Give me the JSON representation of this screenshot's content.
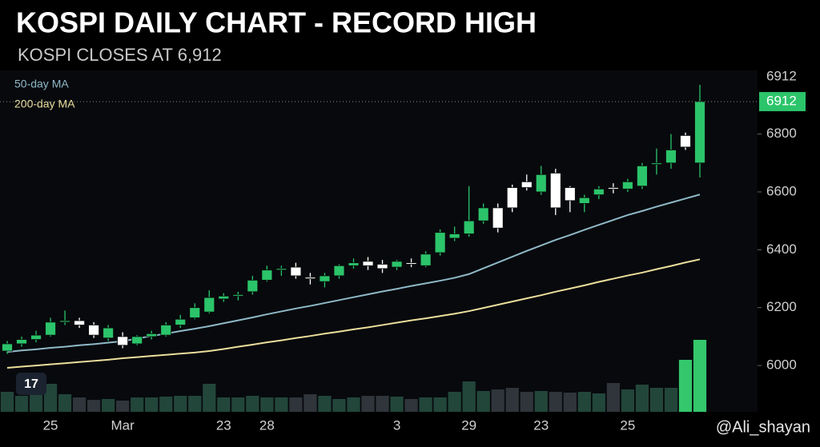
{
  "chart_data": {
    "type": "candlestick",
    "title": "KOSPI DAILY CHART - RECORD HIGH",
    "subtitle": "KOSPI CLOSES AT 6,912",
    "categories": [
      null,
      null,
      null,
      "25",
      null,
      null,
      null,
      null,
      "Mar",
      null,
      null,
      null,
      null,
      null,
      null,
      "23",
      null,
      null,
      "28",
      null,
      null,
      null,
      null,
      null,
      null,
      null,
      null,
      "3",
      null,
      null,
      null,
      null,
      "29",
      null,
      null,
      null,
      null,
      "23",
      null,
      null,
      null,
      null,
      null,
      "25",
      null,
      null,
      null,
      null,
      null
    ],
    "candles": {
      "open": [
        6050,
        6075,
        6090,
        6105,
        6150,
        6155,
        6140,
        6095,
        6100,
        6075,
        6100,
        6105,
        6140,
        6165,
        6185,
        6230,
        6240,
        6255,
        6295,
        6330,
        6340,
        6305,
        6290,
        6310,
        6345,
        6360,
        6350,
        6340,
        6355,
        6345,
        6390,
        6440,
        6455,
        6500,
        6545,
        6615,
        6635,
        6600,
        6665,
        6615,
        6560,
        6590,
        6615,
        6610,
        6620,
        6695,
        6700,
        6795,
        6700
      ],
      "high": [
        6085,
        6100,
        6120,
        6165,
        6190,
        6165,
        6150,
        6140,
        6115,
        6105,
        6120,
        6150,
        6175,
        6215,
        6260,
        6250,
        6255,
        6310,
        6345,
        6345,
        6355,
        6320,
        6320,
        6350,
        6370,
        6375,
        6365,
        6365,
        6370,
        6395,
        6470,
        6480,
        6620,
        6560,
        6560,
        6625,
        6660,
        6690,
        6680,
        6620,
        6590,
        6620,
        6630,
        6645,
        6700,
        6750,
        6800,
        6805,
        6970
      ],
      "low": [
        6040,
        6065,
        6080,
        6100,
        6140,
        6130,
        6095,
        6085,
        6060,
        6070,
        6090,
        6100,
        6130,
        6160,
        6180,
        6220,
        6225,
        6245,
        6290,
        6310,
        6300,
        6280,
        6270,
        6300,
        6335,
        6330,
        6320,
        6330,
        6340,
        6340,
        6380,
        6430,
        6445,
        6490,
        6460,
        6530,
        6605,
        6590,
        6520,
        6530,
        6530,
        6575,
        6595,
        6600,
        6610,
        6660,
        6680,
        6745,
        6650
      ],
      "close": [
        6075,
        6090,
        6105,
        6150,
        6155,
        6140,
        6105,
        6130,
        6070,
        6100,
        6110,
        6140,
        6160,
        6200,
        6235,
        6240,
        6245,
        6295,
        6330,
        6335,
        6310,
        6300,
        6310,
        6345,
        6355,
        6345,
        6335,
        6360,
        6350,
        6385,
        6460,
        6455,
        6500,
        6545,
        6475,
        6545,
        6615,
        6660,
        6545,
        6570,
        6580,
        6610,
        6610,
        6635,
        6690,
        6700,
        6745,
        6755,
        6912
      ],
      "up_color": "#2bc46a",
      "down_color": "#ffffff"
    },
    "series": [
      {
        "name": "50-day MA",
        "color": "#8fb9c7",
        "values": [
          6047,
          6052,
          6056,
          6061,
          6065,
          6070,
          6074,
          6079,
          6084,
          6093,
          6102,
          6110,
          6119,
          6127,
          6136,
          6146,
          6156,
          6166,
          6177,
          6187,
          6197,
          6206,
          6216,
          6226,
          6236,
          6246,
          6256,
          6265,
          6275,
          6284,
          6293,
          6303,
          6316,
          6336,
          6356,
          6376,
          6396,
          6415,
          6434,
          6451,
          6469,
          6486,
          6503,
          6520,
          6534,
          6549,
          6563,
          6577,
          6591
        ]
      },
      {
        "name": "200-day MA",
        "color": "#ecdf9c",
        "values": [
          5992,
          5996,
          6000,
          6004,
          6008,
          6012,
          6016,
          6020,
          6025,
          6029,
          6033,
          6037,
          6041,
          6045,
          6050,
          6057,
          6065,
          6072,
          6080,
          6087,
          6095,
          6102,
          6110,
          6117,
          6125,
          6132,
          6140,
          6148,
          6156,
          6163,
          6171,
          6179,
          6188,
          6199,
          6210,
          6221,
          6232,
          6243,
          6255,
          6266,
          6277,
          6289,
          6300,
          6311,
          6321,
          6333,
          6344,
          6356,
          6367
        ]
      }
    ],
    "volume": [
      25,
      20,
      30,
      35,
      22,
      18,
      15,
      16,
      14,
      18,
      18,
      19,
      20,
      20,
      35,
      18,
      18,
      20,
      18,
      18,
      18,
      22,
      20,
      16,
      18,
      20,
      20,
      19,
      16,
      18,
      18,
      25,
      38,
      26,
      28,
      30,
      25,
      26,
      25,
      24,
      25,
      23,
      36,
      28,
      34,
      30,
      30,
      65,
      90
    ],
    "volume_colors": [
      "#22463a",
      "#22463a",
      "#22463a",
      "#22463a",
      "#22463a",
      "#2f353a",
      "#2f353a",
      "#22463a",
      "#2f353a",
      "#22463a",
      "#22463a",
      "#22463a",
      "#22463a",
      "#22463a",
      "#22463a",
      "#22463a",
      "#22463a",
      "#22463a",
      "#22463a",
      "#22463a",
      "#2f353a",
      "#2f353a",
      "#22463a",
      "#22463a",
      "#22463a",
      "#2f353a",
      "#2f353a",
      "#22463a",
      "#2f353a",
      "#22463a",
      "#22463a",
      "#22463a",
      "#22463a",
      "#22463a",
      "#2f353a",
      "#2f353a",
      "#2f353a",
      "#22463a",
      "#2f353a",
      "#2f353a",
      "#22463a",
      "#22463a",
      "#2f353a",
      "#22463a",
      "#22463a",
      "#22463a",
      "#22463a",
      "#34c76b",
      "#34c76b"
    ],
    "vlim": [
      0,
      100
    ],
    "ylim": [
      5840,
      7020
    ],
    "yticks": [
      6000,
      6200,
      6400,
      6600,
      6800
    ],
    "last_price": 6912,
    "watermark": "@Ali_shayan"
  }
}
